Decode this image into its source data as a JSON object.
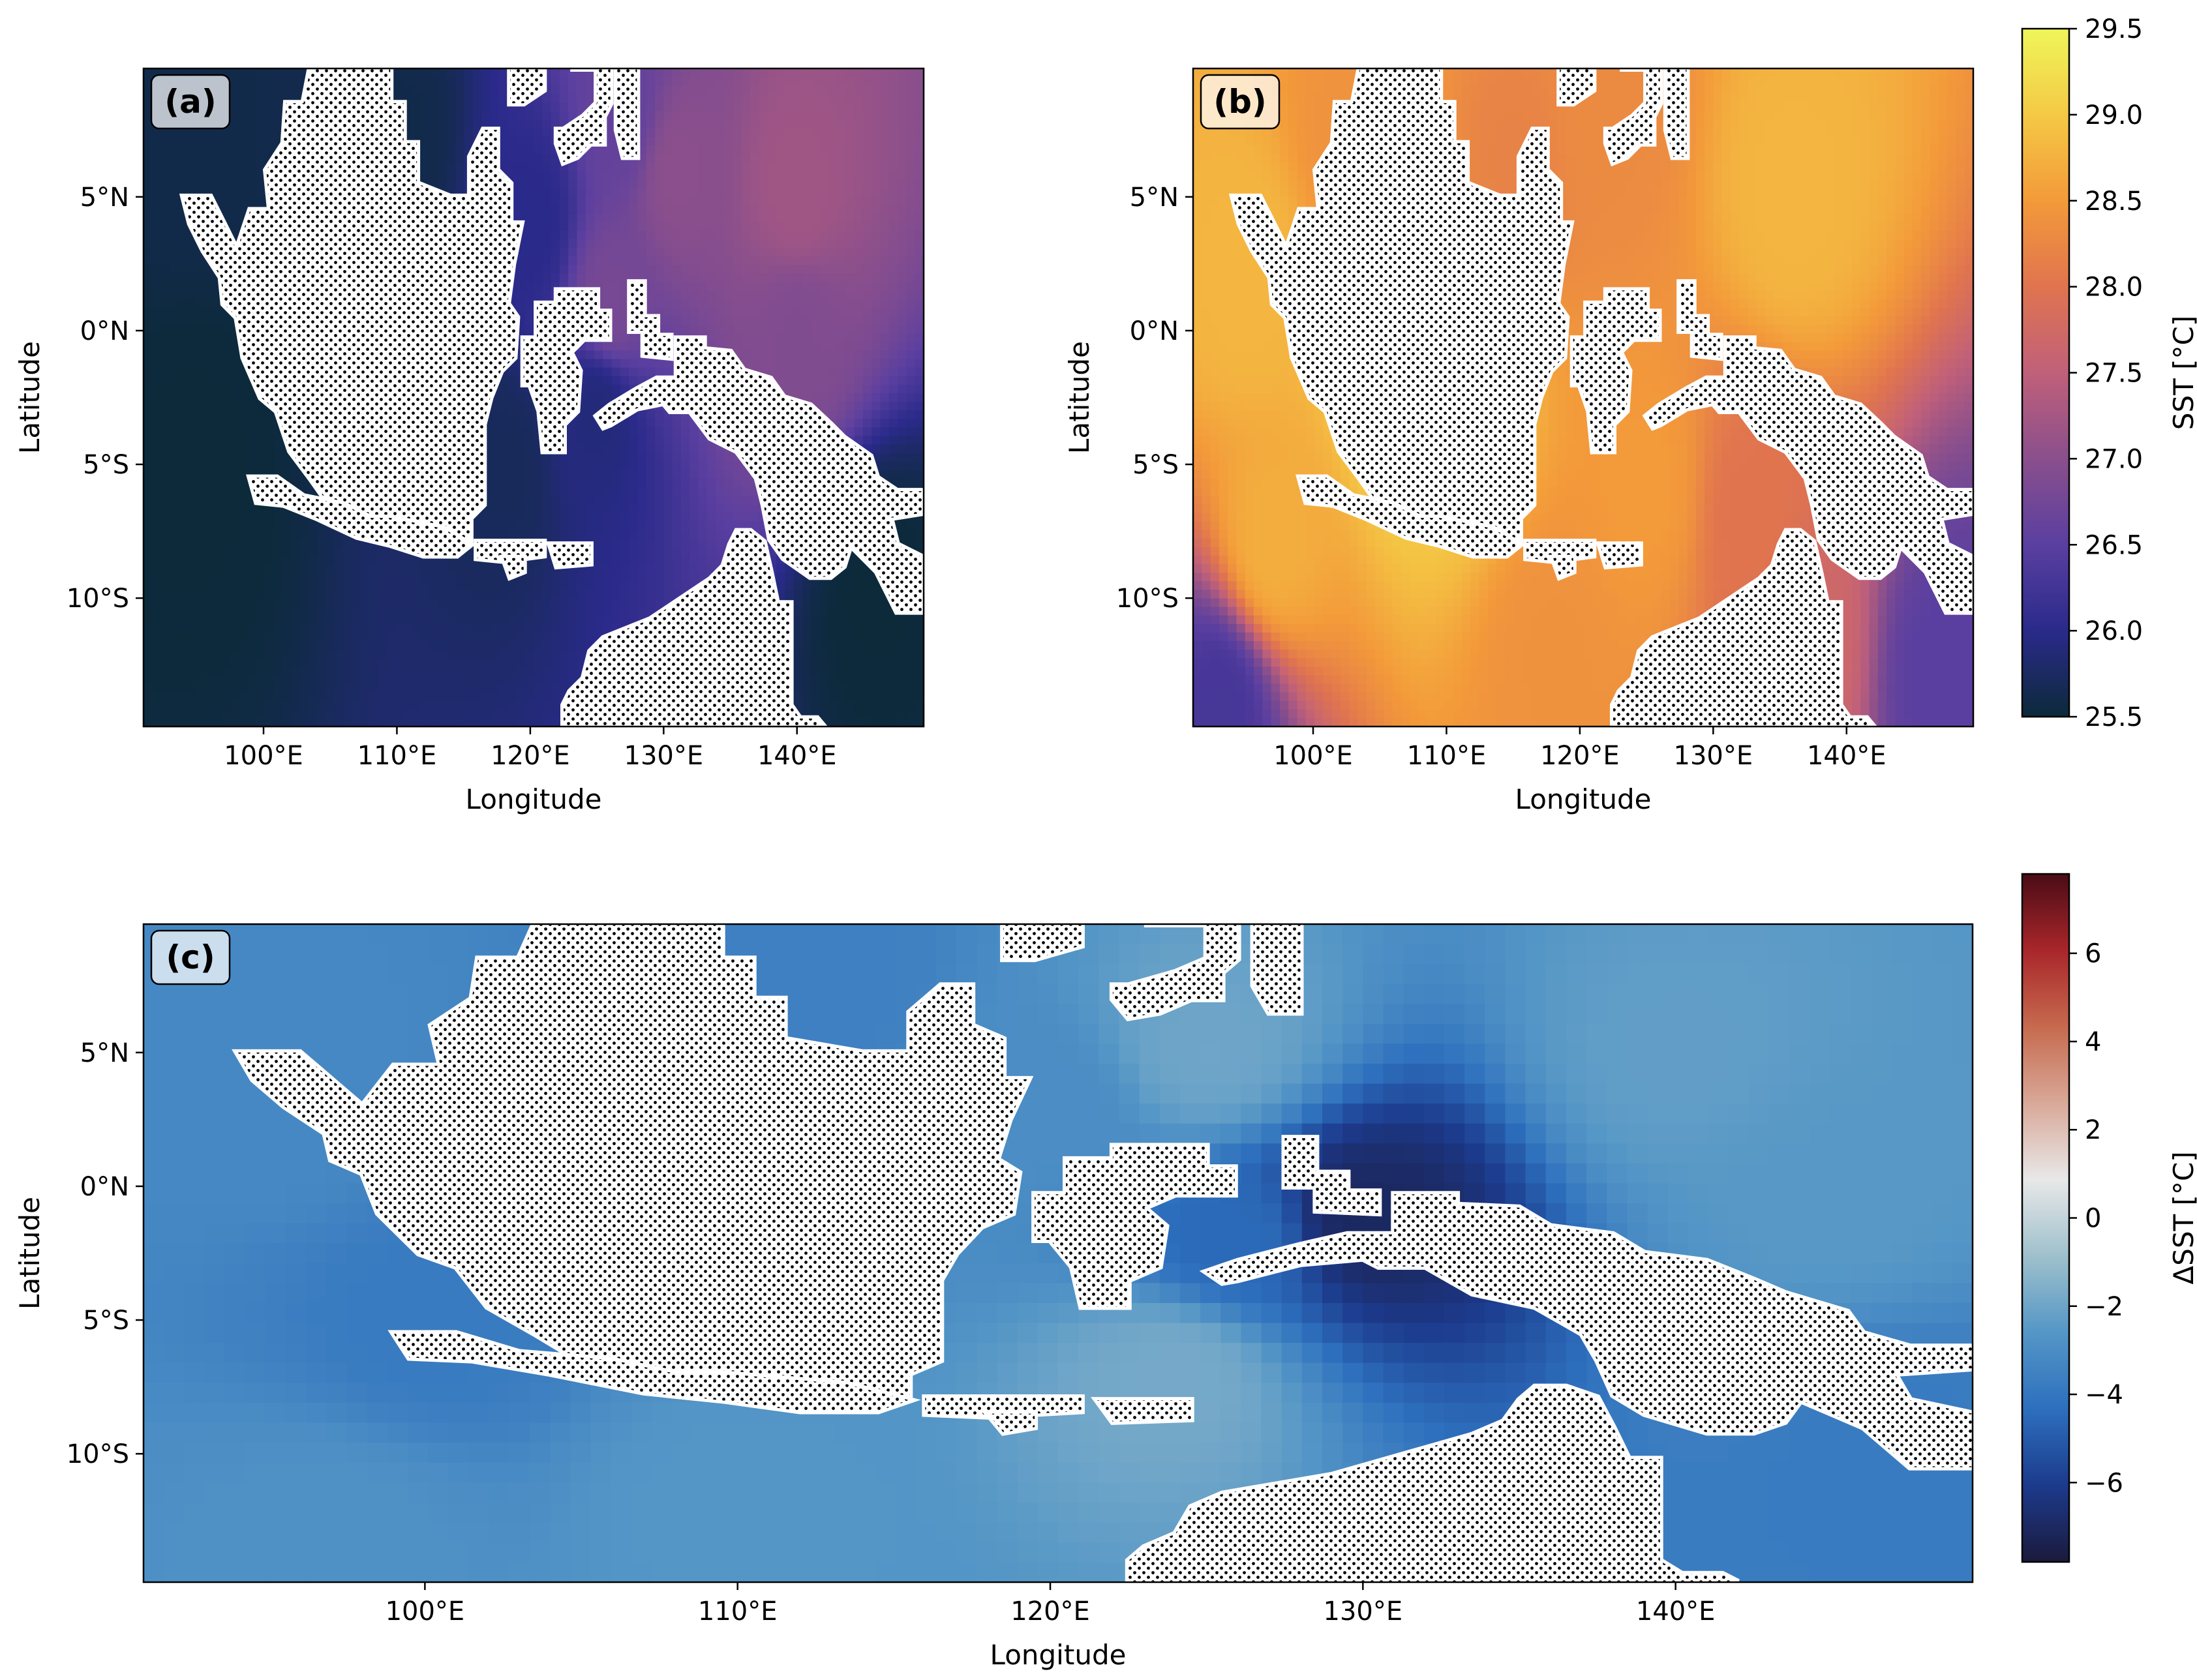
{
  "chart_data": [
    {
      "type": "heatmap",
      "panel_label": "(a)",
      "xlabel": "Longitude",
      "ylabel": "Latitude",
      "xlim": [
        91,
        149.5
      ],
      "ylim": [
        -14.8,
        9.8
      ],
      "xticks": [
        100,
        110,
        120,
        130,
        140
      ],
      "xtick_labels": [
        "100°E",
        "110°E",
        "120°E",
        "130°E",
        "140°E"
      ],
      "yticks": [
        5,
        0,
        -5,
        -10
      ],
      "ytick_labels": [
        "5°N",
        "0°N",
        "5°S",
        "10°S"
      ],
      "colorbar_ref": "sst",
      "land": "stippled",
      "field": [
        {
          "lon": 131,
          "lat": 6,
          "value": 27.0
        },
        {
          "lon": 140,
          "lat": 5,
          "value": 27.2
        },
        {
          "lon": 140,
          "lat": 0,
          "value": 26.9
        },
        {
          "lon": 126,
          "lat": 1,
          "value": 26.8
        },
        {
          "lon": 127,
          "lat": 8,
          "value": 26.6
        },
        {
          "lon": 120,
          "lat": 4,
          "value": 26.0
        },
        {
          "lon": 110,
          "lat": 7,
          "value": 25.6
        },
        {
          "lon": 95,
          "lat": 8,
          "value": 25.6
        },
        {
          "lon": 95,
          "lat": -5,
          "value": 25.5
        },
        {
          "lon": 118,
          "lat": -5,
          "value": 25.7
        },
        {
          "lon": 125,
          "lat": -3,
          "value": 25.9
        },
        {
          "lon": 146,
          "lat": -10,
          "value": 25.5
        }
      ]
    },
    {
      "type": "heatmap",
      "panel_label": "(b)",
      "xlabel": "Longitude",
      "ylabel": "Latitude",
      "xlim": [
        91,
        149.5
      ],
      "ylim": [
        -14.8,
        9.8
      ],
      "xticks": [
        100,
        110,
        120,
        130,
        140
      ],
      "xtick_labels": [
        "100°E",
        "110°E",
        "120°E",
        "130°E",
        "140°E"
      ],
      "yticks": [
        5,
        0,
        -5,
        -10
      ],
      "ytick_labels": [
        "5°N",
        "0°N",
        "5°S",
        "10°S"
      ],
      "colorbar_ref": "sst",
      "land": "stippled",
      "field": [
        {
          "lon": 107,
          "lat": 0,
          "value": 29.4
        },
        {
          "lon": 110,
          "lat": -3,
          "value": 29.0
        },
        {
          "lon": 95,
          "lat": 2,
          "value": 28.8
        },
        {
          "lon": 97,
          "lat": -8,
          "value": 28.7
        },
        {
          "lon": 103,
          "lat": 7,
          "value": 28.4
        },
        {
          "lon": 115,
          "lat": 6,
          "value": 28.2
        },
        {
          "lon": 136,
          "lat": 5,
          "value": 28.8
        },
        {
          "lon": 125,
          "lat": -6,
          "value": 28.5
        },
        {
          "lon": 133,
          "lat": -7,
          "value": 28.0
        },
        {
          "lon": 118,
          "lat": -12,
          "value": 28.4
        },
        {
          "lon": 137,
          "lat": -12,
          "value": 27.7
        },
        {
          "lon": 93,
          "lat": -14,
          "value": 26.3
        },
        {
          "lon": 147,
          "lat": -13,
          "value": 26.5
        },
        {
          "lon": 122,
          "lat": 8,
          "value": 28.3
        }
      ]
    },
    {
      "type": "heatmap",
      "panel_label": "(c)",
      "xlabel": "Longitude",
      "ylabel": "Latitude",
      "xlim": [
        91,
        149.5
      ],
      "ylim": [
        -14.8,
        9.8
      ],
      "xticks": [
        100,
        110,
        120,
        130,
        140
      ],
      "xtick_labels": [
        "100°E",
        "110°E",
        "120°E",
        "130°E",
        "140°E"
      ],
      "yticks": [
        5,
        0,
        -5,
        -10
      ],
      "ytick_labels": [
        "5°N",
        "0°N",
        "5°S",
        "10°S"
      ],
      "colorbar_ref": "dsst",
      "land": "stippled",
      "field": [
        {
          "lon": 95,
          "lat": 3,
          "value": -3.2
        },
        {
          "lon": 100,
          "lat": -5,
          "value": -3.8
        },
        {
          "lon": 112,
          "lat": 7,
          "value": -3.6
        },
        {
          "lon": 120,
          "lat": 3,
          "value": -3.0
        },
        {
          "lon": 125,
          "lat": 5,
          "value": -2.0
        },
        {
          "lon": 140,
          "lat": 5,
          "value": -2.3
        },
        {
          "lon": 145,
          "lat": 0,
          "value": -2.5
        },
        {
          "lon": 124,
          "lat": -7,
          "value": -1.8
        },
        {
          "lon": 110,
          "lat": -12,
          "value": -2.6
        },
        {
          "lon": 126,
          "lat": -2,
          "value": -4.5
        },
        {
          "lon": 130,
          "lat": -1.2,
          "value": -7.0
        },
        {
          "lon": 147,
          "lat": -10,
          "value": -3.8
        },
        {
          "lon": 97,
          "lat": -13,
          "value": -2.8
        }
      ]
    }
  ],
  "colorbars": {
    "sst": {
      "label": "SST [°C]",
      "min": 25.5,
      "max": 29.5,
      "ticks": [
        25.5,
        26.0,
        26.5,
        27.0,
        27.5,
        28.0,
        28.5,
        29.0,
        29.5
      ],
      "tick_labels": [
        "25.5",
        "26.0",
        "26.5",
        "27.0",
        "27.5",
        "28.0",
        "28.5",
        "29.0",
        "29.5"
      ],
      "colormap": [
        "#0c2a3a",
        "#2a2a8a",
        "#5a3fa0",
        "#8a4f8c",
        "#c0607a",
        "#e0744f",
        "#f39a3a",
        "#f4c945",
        "#eff65a"
      ]
    },
    "dsst": {
      "label": "ΔSST [°C]",
      "min": -7.8,
      "max": 7.8,
      "ticks": [
        -6,
        -4,
        -2,
        0,
        2,
        4,
        6
      ],
      "tick_labels": [
        "−6",
        "−4",
        "−2",
        "0",
        "2",
        "4",
        "6"
      ],
      "colormap": [
        "#1b1a3c",
        "#1c3a8c",
        "#2d6fbd",
        "#5496c6",
        "#9ec0cc",
        "#e8e8e8",
        "#d9a898",
        "#c66a4e",
        "#a9262a",
        "#4a0c16"
      ]
    }
  }
}
